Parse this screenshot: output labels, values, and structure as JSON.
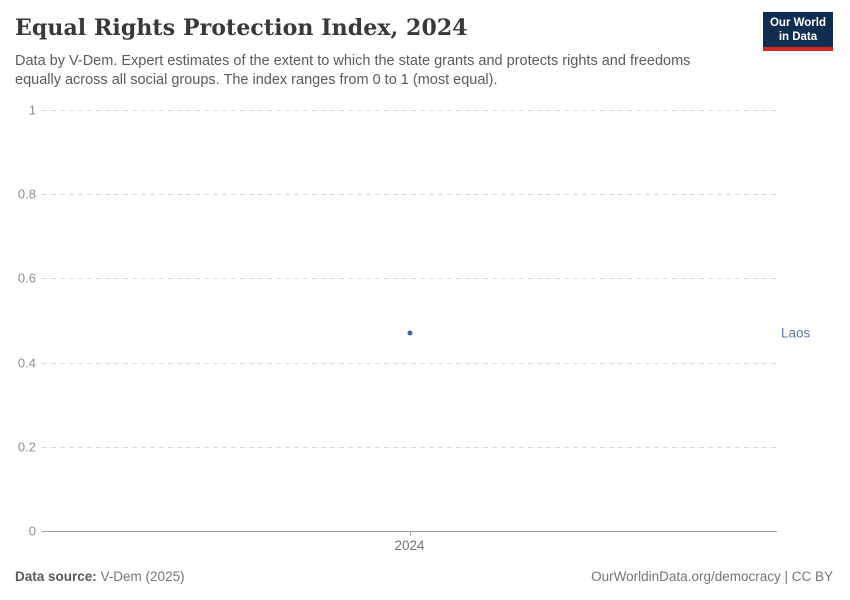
{
  "header": {
    "title": "Equal Rights Protection Index, 2024",
    "subtitle": "Data by V-Dem. Expert estimates of the extent to which the state grants and protects rights and freedoms equally across all social groups. The index ranges from 0 to 1 (most equal).",
    "logo": {
      "line1": "Our World",
      "line2": "in Data",
      "bg_color": "#0e2d51",
      "accent_color": "#d42b21"
    }
  },
  "chart_data": {
    "type": "scatter",
    "title": "Equal Rights Protection Index, 2024",
    "x_ticks": [
      "2024"
    ],
    "y_axis": {
      "min": 0,
      "max": 1,
      "ticks": [
        0,
        0.2,
        0.4,
        0.6,
        0.8,
        1
      ]
    },
    "grid": "horizontal-dashed",
    "legend_position": "right-of-point",
    "series": [
      {
        "name": "Laos",
        "color": "#44619c",
        "label_color": "#6478a8",
        "points": [
          {
            "x": 2024,
            "y": 0.47
          }
        ]
      }
    ]
  },
  "footer": {
    "source_label": "Data source:",
    "source_value": "V-Dem (2025)",
    "license": "OurWorldinData.org/democracy | CC BY"
  }
}
